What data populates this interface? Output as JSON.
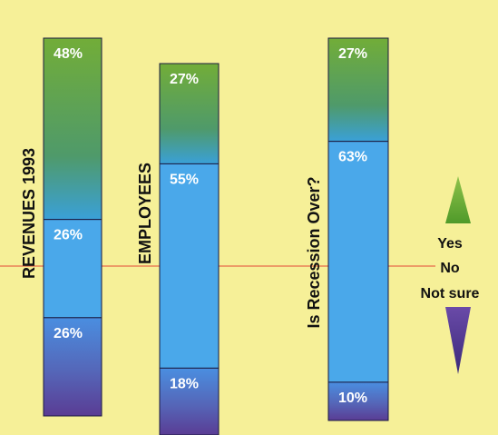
{
  "chart_data": {
    "type": "bar",
    "stacked": true,
    "categories": [
      "REVENUES 1993",
      "EMPLOYEES",
      "Is Recession Over?"
    ],
    "series": [
      {
        "name": "Yes",
        "values": [
          48,
          27,
          27
        ],
        "labels": [
          "48%",
          "27%",
          "27%"
        ]
      },
      {
        "name": "No",
        "values": [
          26,
          55,
          63
        ],
        "labels": [
          "26%",
          "55%",
          "63%"
        ]
      },
      {
        "name": "Not sure",
        "values": [
          26,
          18,
          10
        ],
        "labels": [
          "26%",
          "18%",
          "10%"
        ]
      }
    ],
    "ylim": [
      0,
      100
    ],
    "legend": {
      "placement": "right",
      "entries": [
        "Yes",
        "No",
        "Not sure"
      ]
    },
    "colors": {
      "background": "#f6f098",
      "yes": "#6fae3c",
      "no": "#4aa8e8",
      "not_sure": "#5b3c95",
      "reference_line": "#e86a4a"
    },
    "grid": false
  }
}
